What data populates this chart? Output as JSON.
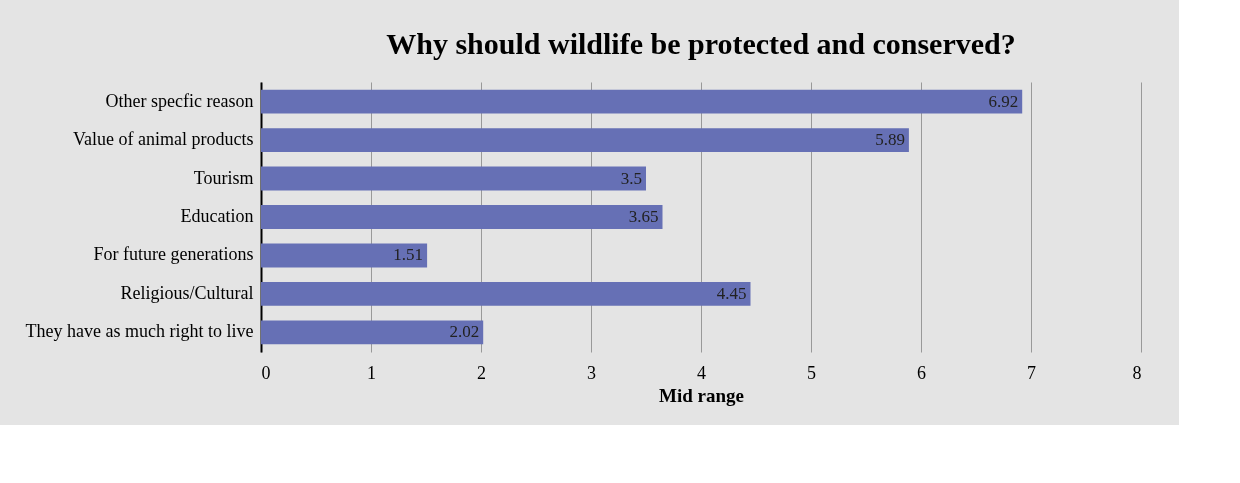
{
  "chart_data": {
    "type": "bar",
    "orientation": "horizontal",
    "title": "Why should wildlife be protected and conserved?",
    "xlabel": "Mid range",
    "categories": [
      "Other specfic reason",
      "Value of animal products",
      "Tourism",
      "Education",
      "For future generations",
      "Religious/Cultural",
      "They  have as much right to live"
    ],
    "values": [
      6.92,
      5.89,
      3.5,
      3.65,
      1.51,
      4.45,
      2.02
    ],
    "color": "#6670b5",
    "xlim": [
      0,
      8
    ],
    "xticks": [
      0,
      1,
      2,
      3,
      4,
      5,
      6,
      7,
      8
    ],
    "grid": "x",
    "data_labels": true
  }
}
